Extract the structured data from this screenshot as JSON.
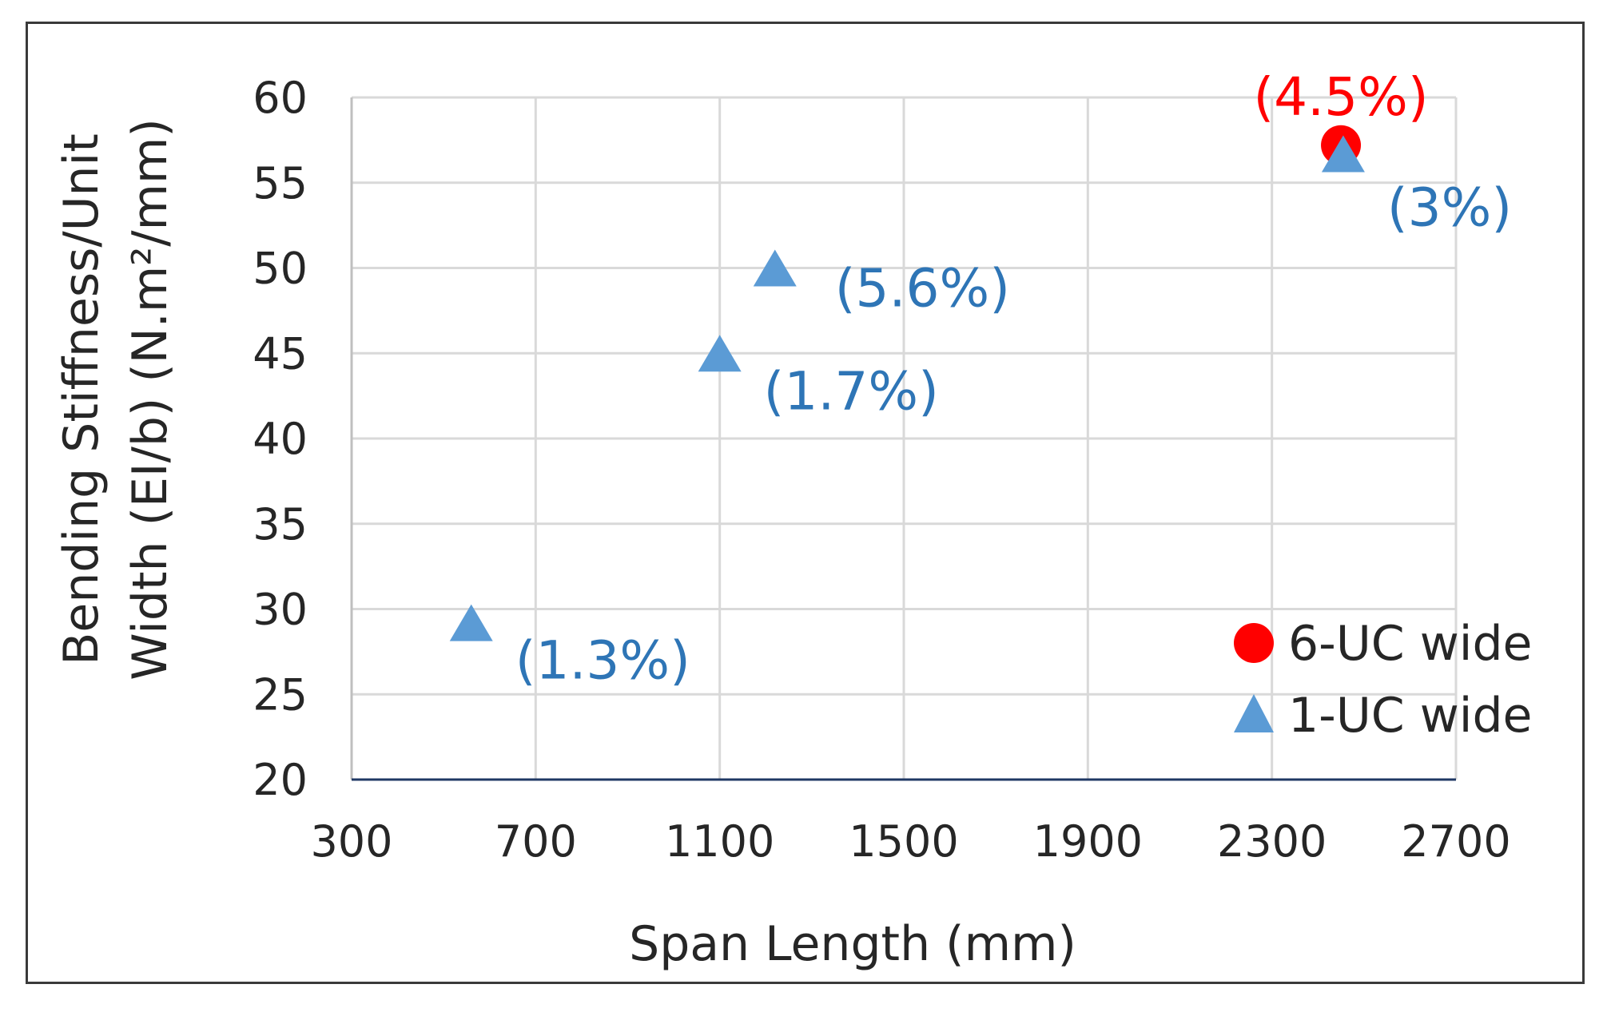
{
  "chart_data": {
    "type": "scatter",
    "xlabel": "Span Length (mm)",
    "ylabel_line1": "Bending Stiffness/Unit",
    "ylabel_line2": "Width (EI/b) (N.m²/mm)",
    "xlim": [
      300,
      2700
    ],
    "ylim": [
      20,
      60
    ],
    "x_ticks": [
      300,
      700,
      1100,
      1500,
      1900,
      2300,
      2700
    ],
    "y_ticks": [
      20,
      25,
      30,
      35,
      40,
      45,
      50,
      55,
      60
    ],
    "grid": true,
    "legend_position": "bottom-right",
    "series": [
      {
        "name": "6-UC wide",
        "marker": "circle",
        "color": "#ff0000",
        "points": [
          {
            "x": 2450,
            "y": 57.2,
            "label": "(4.5%)"
          }
        ]
      },
      {
        "name": "1-UC wide",
        "marker": "triangle",
        "color": "#5b9bd5",
        "label_color": "#2e75b6",
        "points": [
          {
            "x": 560,
            "y": 29.2,
            "label": "(1.3%)"
          },
          {
            "x": 1100,
            "y": 45.0,
            "label": "(1.7%)"
          },
          {
            "x": 1220,
            "y": 50.0,
            "label": "(5.6%)"
          },
          {
            "x": 2455,
            "y": 56.7,
            "label": "(3%)"
          }
        ]
      }
    ]
  }
}
